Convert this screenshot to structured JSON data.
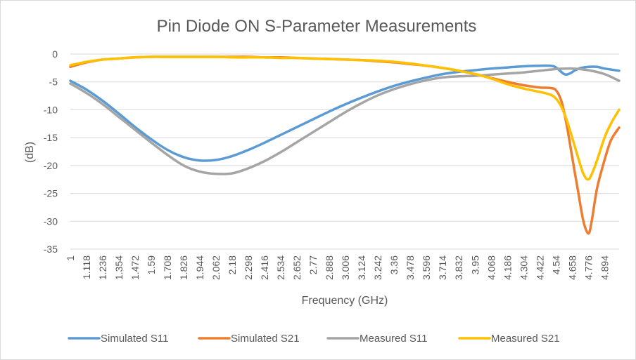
{
  "chart_data": {
    "type": "line",
    "title": "Pin Diode ON S-Parameter Measurements",
    "xlabel": "Frequency (GHz)",
    "ylabel": "(dB)",
    "xlim": [
      1,
      5
    ],
    "ylim": [
      -35,
      0
    ],
    "y_ticks": [
      "0",
      "-5",
      "-10",
      "-15",
      "-20",
      "-25",
      "-30",
      "-35"
    ],
    "x_ticks": [
      "1",
      "1.118",
      "1.236",
      "1.354",
      "1.472",
      "1.59",
      "1.708",
      "1.826",
      "1.944",
      "2.062",
      "2.18",
      "2.298",
      "2.416",
      "2.534",
      "2.652",
      "2.77",
      "2.888",
      "3.006",
      "3.124",
      "3.242",
      "3.36",
      "3.478",
      "3.596",
      "3.714",
      "3.832",
      "3.95",
      "4.068",
      "4.186",
      "4.304",
      "4.422",
      "4.54",
      "4.658",
      "4.776",
      "4.894"
    ],
    "grid": "horizontal",
    "legend_position": "bottom",
    "series": [
      {
        "name": "Simulated S11",
        "color": "#5b9bd5",
        "x": [
          1.0,
          1.118,
          1.236,
          1.354,
          1.472,
          1.59,
          1.708,
          1.826,
          1.944,
          2.062,
          2.18,
          2.298,
          2.416,
          2.534,
          2.652,
          2.77,
          2.888,
          3.006,
          3.124,
          3.242,
          3.36,
          3.478,
          3.596,
          3.714,
          3.832,
          3.95,
          4.068,
          4.186,
          4.304,
          4.422,
          4.5,
          4.54,
          4.6,
          4.64,
          4.68,
          4.72,
          4.776,
          4.84,
          4.894,
          5.0
        ],
        "y": [
          -4.8,
          -6.4,
          -8.4,
          -10.7,
          -13.1,
          -15.3,
          -17.2,
          -18.5,
          -19.1,
          -19.0,
          -18.3,
          -17.2,
          -15.9,
          -14.5,
          -13.1,
          -11.7,
          -10.3,
          -9.0,
          -7.8,
          -6.7,
          -5.7,
          -4.9,
          -4.2,
          -3.6,
          -3.2,
          -2.9,
          -2.6,
          -2.4,
          -2.2,
          -2.1,
          -2.1,
          -2.4,
          -3.6,
          -3.5,
          -2.9,
          -2.5,
          -2.3,
          -2.3,
          -2.6,
          -3.0
        ]
      },
      {
        "name": "Simulated S21",
        "color": "#ed7d31",
        "x": [
          1.0,
          1.118,
          1.236,
          1.354,
          1.472,
          1.59,
          1.708,
          1.826,
          1.944,
          2.062,
          2.18,
          2.298,
          2.416,
          2.534,
          2.652,
          2.77,
          2.888,
          3.006,
          3.124,
          3.242,
          3.36,
          3.478,
          3.596,
          3.714,
          3.832,
          3.95,
          4.068,
          4.186,
          4.304,
          4.422,
          4.5,
          4.54,
          4.58,
          4.62,
          4.658,
          4.7,
          4.74,
          4.776,
          4.8,
          4.84,
          4.894,
          4.94,
          5.0
        ],
        "y": [
          -2.3,
          -1.5,
          -1.0,
          -0.8,
          -0.6,
          -0.5,
          -0.5,
          -0.5,
          -0.5,
          -0.5,
          -0.5,
          -0.5,
          -0.6,
          -0.6,
          -0.7,
          -0.8,
          -0.9,
          -1.0,
          -1.1,
          -1.3,
          -1.5,
          -1.8,
          -2.1,
          -2.5,
          -3.0,
          -3.6,
          -4.3,
          -5.0,
          -5.6,
          -6.0,
          -6.1,
          -6.5,
          -8.5,
          -13.0,
          -18.5,
          -24.5,
          -30.0,
          -32.2,
          -30.0,
          -24.0,
          -19.0,
          -15.5,
          -13.2
        ]
      },
      {
        "name": "Measured S11",
        "color": "#a5a5a5",
        "x": [
          1.0,
          1.118,
          1.236,
          1.354,
          1.472,
          1.59,
          1.708,
          1.826,
          1.944,
          2.062,
          2.18,
          2.298,
          2.416,
          2.534,
          2.652,
          2.77,
          2.888,
          3.006,
          3.124,
          3.242,
          3.36,
          3.478,
          3.596,
          3.714,
          3.832,
          3.95,
          4.068,
          4.186,
          4.304,
          4.422,
          4.54,
          4.658,
          4.776,
          4.894,
          5.0
        ],
        "y": [
          -5.3,
          -7.0,
          -9.0,
          -11.3,
          -13.6,
          -15.9,
          -18.1,
          -20.0,
          -21.1,
          -21.5,
          -21.4,
          -20.5,
          -19.2,
          -17.6,
          -15.8,
          -14.0,
          -12.2,
          -10.4,
          -8.8,
          -7.4,
          -6.3,
          -5.4,
          -4.7,
          -4.2,
          -4.0,
          -3.9,
          -3.7,
          -3.5,
          -3.3,
          -3.0,
          -2.7,
          -2.6,
          -2.9,
          -3.6,
          -4.8
        ]
      },
      {
        "name": "Measured S21",
        "color": "#ffc000",
        "x": [
          1.0,
          1.118,
          1.236,
          1.354,
          1.472,
          1.59,
          1.708,
          1.826,
          1.944,
          2.062,
          2.18,
          2.298,
          2.416,
          2.534,
          2.652,
          2.77,
          2.888,
          3.006,
          3.124,
          3.242,
          3.36,
          3.478,
          3.596,
          3.714,
          3.832,
          3.95,
          4.068,
          4.186,
          4.304,
          4.422,
          4.5,
          4.54,
          4.58,
          4.62,
          4.658,
          4.7,
          4.74,
          4.776,
          4.81,
          4.84,
          4.894,
          4.94,
          5.0
        ],
        "y": [
          -2.0,
          -1.4,
          -1.0,
          -0.8,
          -0.6,
          -0.5,
          -0.5,
          -0.5,
          -0.5,
          -0.5,
          -0.6,
          -0.6,
          -0.6,
          -0.7,
          -0.7,
          -0.8,
          -0.9,
          -1.0,
          -1.1,
          -1.2,
          -1.4,
          -1.7,
          -2.1,
          -2.5,
          -3.0,
          -3.6,
          -4.4,
          -5.4,
          -6.2,
          -6.8,
          -7.3,
          -8.0,
          -9.5,
          -12.0,
          -15.0,
          -18.5,
          -21.5,
          -22.5,
          -21.0,
          -19.0,
          -15.0,
          -12.5,
          -10.0
        ]
      }
    ]
  }
}
